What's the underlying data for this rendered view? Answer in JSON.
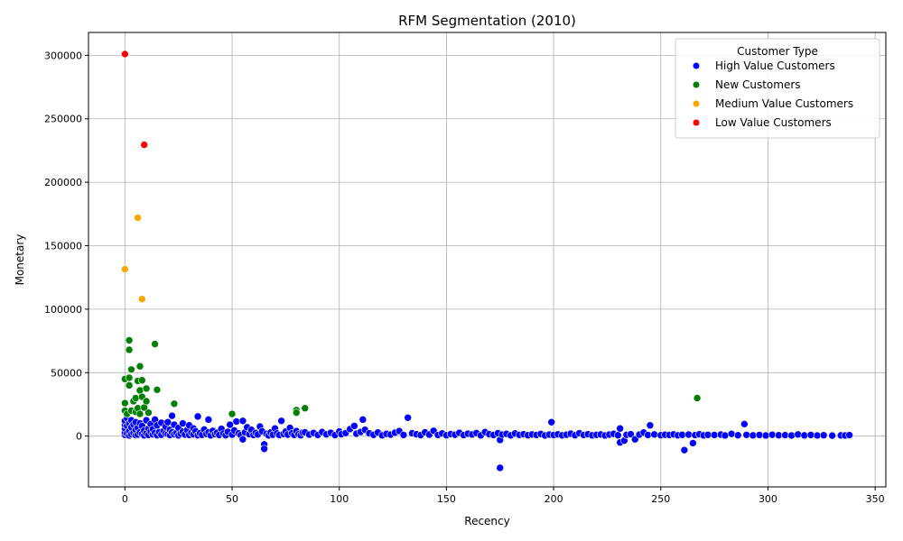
{
  "chart_data": {
    "type": "scatter",
    "title": "RFM Segmentation (2010)",
    "xlabel": "Recency",
    "ylabel": "Monetary",
    "xlim": [
      -17,
      355
    ],
    "ylim": [
      -40000,
      318000
    ],
    "x_ticks": [
      "0",
      "50",
      "100",
      "150",
      "200",
      "250",
      "300",
      "350"
    ],
    "x_tick_values": [
      0,
      50,
      100,
      150,
      200,
      250,
      300,
      350
    ],
    "y_ticks": [
      "0",
      "50000",
      "100000",
      "150000",
      "200000",
      "250000",
      "300000"
    ],
    "y_tick_values": [
      0,
      50000,
      100000,
      150000,
      200000,
      250000,
      300000
    ],
    "grid": true,
    "legend": {
      "title": "Customer Type",
      "placement": "top-right"
    },
    "series": [
      {
        "name": "High Value Customers",
        "color": "#0000ff",
        "points": [
          [
            0,
            1000
          ],
          [
            0,
            3000
          ],
          [
            0,
            6000
          ],
          [
            0,
            9000
          ],
          [
            0,
            12000
          ],
          [
            1,
            2000
          ],
          [
            1,
            8000
          ],
          [
            1,
            14000
          ],
          [
            2,
            500
          ],
          [
            2,
            4000
          ],
          [
            2,
            10000
          ],
          [
            3,
            1500
          ],
          [
            3,
            7000
          ],
          [
            3,
            12500
          ],
          [
            4,
            2500
          ],
          [
            4,
            9000
          ],
          [
            5,
            800
          ],
          [
            5,
            5000
          ],
          [
            5,
            11000
          ],
          [
            6,
            1200
          ],
          [
            6,
            6500
          ],
          [
            7,
            3000
          ],
          [
            7,
            10000
          ],
          [
            8,
            1800
          ],
          [
            8,
            8000
          ],
          [
            9,
            600
          ],
          [
            9,
            4500
          ],
          [
            10,
            2200
          ],
          [
            10,
            12500
          ],
          [
            11,
            900
          ],
          [
            11,
            6000
          ],
          [
            12,
            3500
          ],
          [
            12,
            9500
          ],
          [
            13,
            1400
          ],
          [
            13,
            5500
          ],
          [
            14,
            2600
          ],
          [
            14,
            13000
          ],
          [
            15,
            700
          ],
          [
            15,
            8500
          ],
          [
            16,
            3200
          ],
          [
            17,
            1100
          ],
          [
            17,
            10500
          ],
          [
            18,
            4000
          ],
          [
            19,
            2000
          ],
          [
            19,
            7500
          ],
          [
            20,
            1600
          ],
          [
            20,
            11000
          ],
          [
            21,
            800
          ],
          [
            21,
            5000
          ],
          [
            22,
            3000
          ],
          [
            22,
            16000
          ],
          [
            23,
            1500
          ],
          [
            23,
            9000
          ],
          [
            24,
            2400
          ],
          [
            25,
            600
          ],
          [
            25,
            6500
          ],
          [
            26,
            1900
          ],
          [
            27,
            3600
          ],
          [
            27,
            10000
          ],
          [
            28,
            1200
          ],
          [
            29,
            4800
          ],
          [
            30,
            900
          ],
          [
            30,
            8500
          ],
          [
            31,
            2700
          ],
          [
            32,
            1400
          ],
          [
            32,
            6000
          ],
          [
            33,
            3900
          ],
          [
            34,
            700
          ],
          [
            34,
            15500
          ],
          [
            35,
            2300
          ],
          [
            36,
            1000
          ],
          [
            37,
            5200
          ],
          [
            38,
            1800
          ],
          [
            39,
            13000
          ],
          [
            39,
            3000
          ],
          [
            40,
            600
          ],
          [
            41,
            4200
          ],
          [
            42,
            1500
          ],
          [
            43,
            2600
          ],
          [
            44,
            900
          ],
          [
            45,
            5800
          ],
          [
            46,
            2000
          ],
          [
            47,
            700
          ],
          [
            48,
            3400
          ],
          [
            49,
            9000
          ],
          [
            50,
            1200
          ],
          [
            51,
            4500
          ],
          [
            52,
            11500
          ],
          [
            53,
            2200
          ],
          [
            54,
            800
          ],
          [
            55,
            12000
          ],
          [
            55,
            -2500
          ],
          [
            56,
            3000
          ],
          [
            57,
            7000
          ],
          [
            58,
            1500
          ],
          [
            59,
            5000
          ],
          [
            60,
            900
          ],
          [
            61,
            2600
          ],
          [
            62,
            1300
          ],
          [
            63,
            7500
          ],
          [
            64,
            3800
          ],
          [
            65,
            -6500
          ],
          [
            65,
            -10000
          ],
          [
            66,
            1800
          ],
          [
            67,
            600
          ],
          [
            68,
            2900
          ],
          [
            69,
            1100
          ],
          [
            70,
            6000
          ],
          [
            71,
            2100
          ],
          [
            72,
            800
          ],
          [
            73,
            12000
          ],
          [
            74,
            1700
          ],
          [
            75,
            3500
          ],
          [
            76,
            1200
          ],
          [
            77,
            6500
          ],
          [
            78,
            2300
          ],
          [
            79,
            900
          ],
          [
            80,
            4000
          ],
          [
            81,
            1500
          ],
          [
            82,
            700
          ],
          [
            83,
            2800
          ],
          [
            84,
            3000
          ],
          [
            86,
            1200
          ],
          [
            88,
            2500
          ],
          [
            90,
            900
          ],
          [
            92,
            3200
          ],
          [
            94,
            1400
          ],
          [
            96,
            2600
          ],
          [
            98,
            800
          ],
          [
            100,
            3600
          ],
          [
            101,
            1500
          ],
          [
            103,
            2400
          ],
          [
            105,
            5500
          ],
          [
            107,
            8000
          ],
          [
            108,
            1900
          ],
          [
            110,
            3300
          ],
          [
            111,
            13000
          ],
          [
            112,
            5000
          ],
          [
            114,
            2200
          ],
          [
            116,
            1000
          ],
          [
            118,
            2800
          ],
          [
            120,
            600
          ],
          [
            122,
            1800
          ],
          [
            124,
            1200
          ],
          [
            126,
            2700
          ],
          [
            128,
            4000
          ],
          [
            130,
            900
          ],
          [
            132,
            14500
          ],
          [
            134,
            2300
          ],
          [
            136,
            1500
          ],
          [
            138,
            800
          ],
          [
            140,
            3000
          ],
          [
            142,
            1200
          ],
          [
            144,
            4200
          ],
          [
            146,
            900
          ],
          [
            148,
            2100
          ],
          [
            150,
            700
          ],
          [
            152,
            1600
          ],
          [
            154,
            1100
          ],
          [
            156,
            2600
          ],
          [
            158,
            800
          ],
          [
            160,
            1900
          ],
          [
            162,
            1300
          ],
          [
            164,
            2400
          ],
          [
            166,
            600
          ],
          [
            168,
            3200
          ],
          [
            170,
            1500
          ],
          [
            172,
            900
          ],
          [
            174,
            2300
          ],
          [
            175,
            -3000
          ],
          [
            175,
            -25000
          ],
          [
            176,
            1200
          ],
          [
            178,
            1800
          ],
          [
            180,
            600
          ],
          [
            182,
            2100
          ],
          [
            184,
            1000
          ],
          [
            186,
            1500
          ],
          [
            188,
            700
          ],
          [
            190,
            1300
          ],
          [
            192,
            900
          ],
          [
            194,
            1700
          ],
          [
            196,
            500
          ],
          [
            198,
            1200
          ],
          [
            199,
            11000
          ],
          [
            200,
            800
          ],
          [
            202,
            1400
          ],
          [
            204,
            600
          ],
          [
            206,
            1100
          ],
          [
            208,
            1900
          ],
          [
            210,
            700
          ],
          [
            212,
            2300
          ],
          [
            214,
            900
          ],
          [
            216,
            1500
          ],
          [
            218,
            600
          ],
          [
            220,
            1000
          ],
          [
            222,
            1300
          ],
          [
            224,
            500
          ],
          [
            226,
            1200
          ],
          [
            228,
            1800
          ],
          [
            230,
            700
          ],
          [
            231,
            6000
          ],
          [
            231,
            -5000
          ],
          [
            233,
            -3500
          ],
          [
            234,
            1000
          ],
          [
            236,
            1500
          ],
          [
            238,
            -2500
          ],
          [
            240,
            1200
          ],
          [
            242,
            2800
          ],
          [
            244,
            900
          ],
          [
            245,
            8500
          ],
          [
            247,
            1300
          ],
          [
            250,
            700
          ],
          [
            252,
            1100
          ],
          [
            254,
            900
          ],
          [
            256,
            1400
          ],
          [
            258,
            600
          ],
          [
            260,
            1000
          ],
          [
            261,
            -11000
          ],
          [
            263,
            1200
          ],
          [
            265,
            -5500
          ],
          [
            266,
            800
          ],
          [
            268,
            1500
          ],
          [
            270,
            600
          ],
          [
            272,
            1000
          ],
          [
            275,
            900
          ],
          [
            278,
            1200
          ],
          [
            280,
            500
          ],
          [
            283,
            1800
          ],
          [
            286,
            700
          ],
          [
            289,
            9500
          ],
          [
            290,
            1000
          ],
          [
            293,
            600
          ],
          [
            296,
            900
          ],
          [
            299,
            500
          ],
          [
            302,
            1100
          ],
          [
            305,
            700
          ],
          [
            308,
            800
          ],
          [
            311,
            500
          ],
          [
            314,
            1300
          ],
          [
            317,
            600
          ],
          [
            320,
            900
          ],
          [
            323,
            500
          ],
          [
            326,
            700
          ],
          [
            330,
            400
          ],
          [
            334,
            600
          ],
          [
            336,
            500
          ],
          [
            338,
            800
          ]
        ]
      },
      {
        "name": "New Customers",
        "color": "#008000",
        "points": [
          [
            0,
            45000
          ],
          [
            0,
            26000
          ],
          [
            0,
            20000
          ],
          [
            1,
            17500
          ],
          [
            2,
            75500
          ],
          [
            2,
            68000
          ],
          [
            2,
            46000
          ],
          [
            2,
            40000
          ],
          [
            3,
            52500
          ],
          [
            3,
            20000
          ],
          [
            4,
            27500
          ],
          [
            5,
            30000
          ],
          [
            5,
            19000
          ],
          [
            6,
            43500
          ],
          [
            6,
            22000
          ],
          [
            7,
            55000
          ],
          [
            7,
            36000
          ],
          [
            7,
            17500
          ],
          [
            8,
            44000
          ],
          [
            8,
            31000
          ],
          [
            9,
            22500
          ],
          [
            10,
            37500
          ],
          [
            10,
            27500
          ],
          [
            11,
            18500
          ],
          [
            14,
            72500
          ],
          [
            15,
            36500
          ],
          [
            23,
            25500
          ],
          [
            50,
            17500
          ],
          [
            80,
            20500
          ],
          [
            80,
            18500
          ],
          [
            84,
            22000
          ],
          [
            267,
            30000
          ]
        ]
      },
      {
        "name": "Medium Value Customers",
        "color": "#ffa500",
        "points": [
          [
            0,
            131500
          ],
          [
            6,
            172000
          ],
          [
            8,
            108000
          ]
        ]
      },
      {
        "name": "Low Value Customers",
        "color": "#ff0000",
        "points": [
          [
            0,
            301000
          ],
          [
            9,
            229500
          ]
        ]
      }
    ]
  }
}
